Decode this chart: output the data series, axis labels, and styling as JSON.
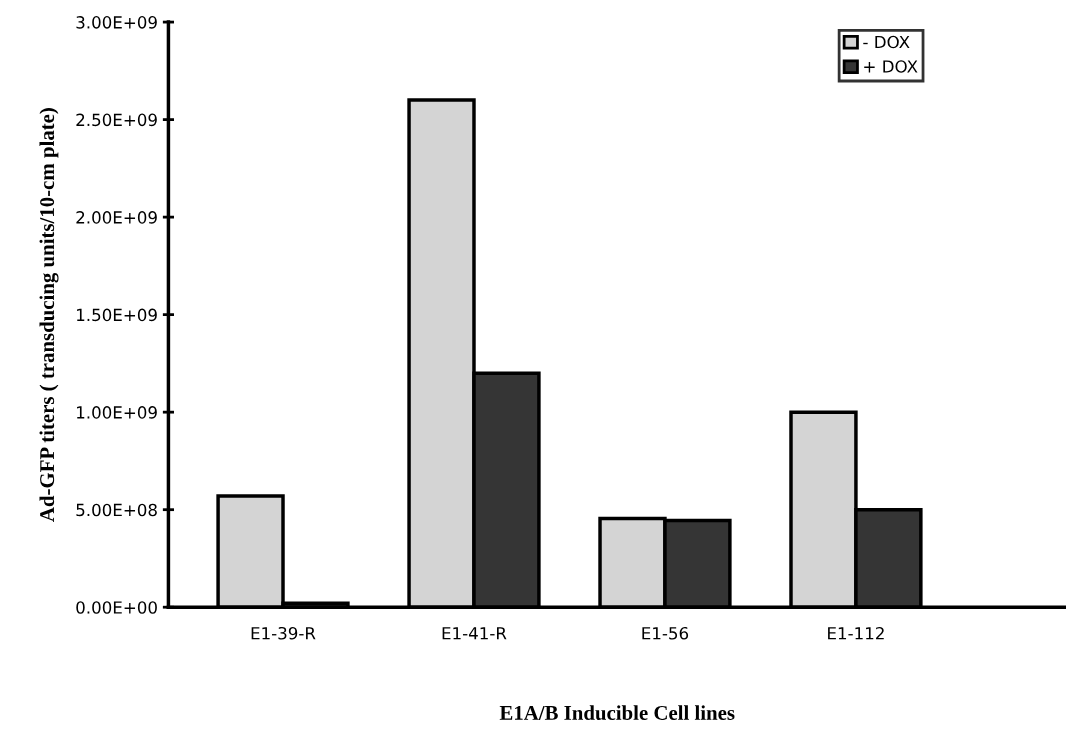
{
  "chart_data": {
    "type": "bar",
    "xlabel": "E1A/B Inducible Cell lines",
    "ylabel": "Ad-GFP titers ( transducing units/10-cm plate)",
    "categories": [
      "E1-39-R",
      "E1-41-R",
      "E1-56",
      "E1-112"
    ],
    "series": [
      {
        "name": "- DOX",
        "color": "#d4d4d4",
        "values": [
          570000000,
          2600000000,
          455000000,
          1000000000
        ]
      },
      {
        "name": "+ DOX",
        "color": "#353535",
        "values": [
          20000000,
          1200000000,
          445000000,
          500000000
        ]
      }
    ],
    "ylim": [
      0,
      3000000000
    ],
    "yticks": [
      {
        "value": 0,
        "label": "0.00E+00"
      },
      {
        "value": 500000000,
        "label": "5.00E+08"
      },
      {
        "value": 1000000000,
        "label": "1.00E+09"
      },
      {
        "value": 1500000000,
        "label": "1.50E+09"
      },
      {
        "value": 2000000000,
        "label": "2.00E+09"
      },
      {
        "value": 2500000000,
        "label": "2.50E+09"
      },
      {
        "value": 3000000000,
        "label": "3.00E+09"
      }
    ],
    "grid": false,
    "legend": "top right"
  }
}
